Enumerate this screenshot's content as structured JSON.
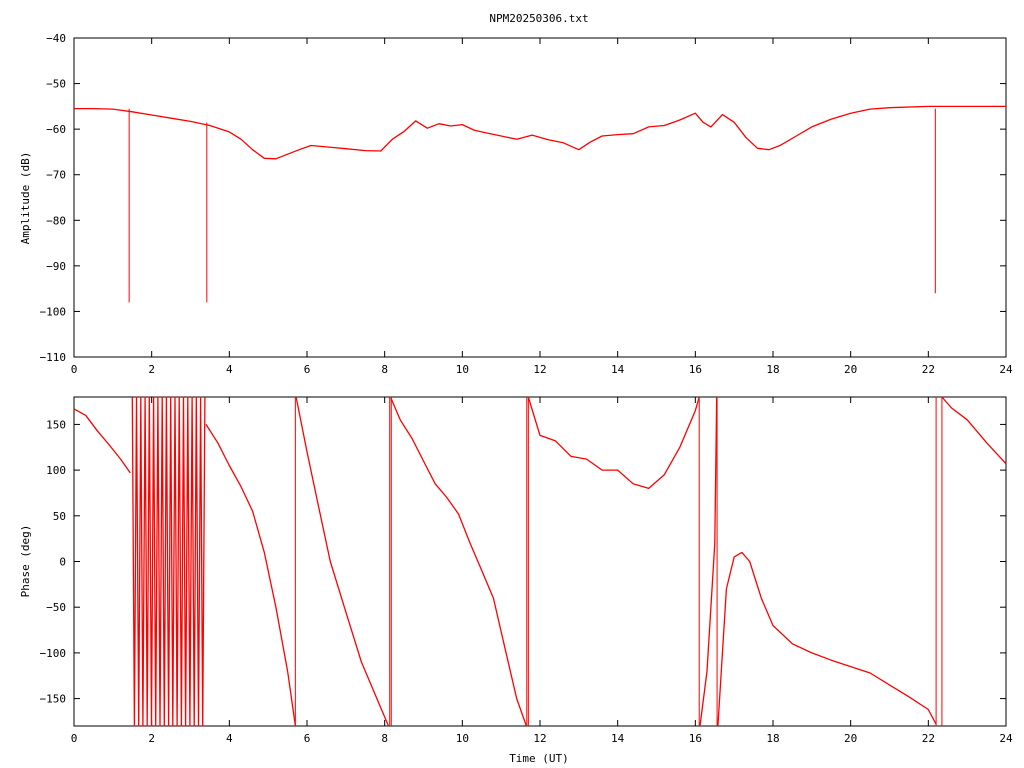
{
  "chart_data": [
    {
      "type": "line",
      "title": "NPM20250306.txt",
      "xlabel": "",
      "ylabel": "Amplitude (dB)",
      "xlim": [
        0,
        24
      ],
      "ylim": [
        -110,
        -40
      ],
      "xticks": [
        0,
        2,
        4,
        6,
        8,
        10,
        12,
        14,
        16,
        18,
        20,
        22,
        24
      ],
      "yticks": [
        -110,
        -100,
        -90,
        -80,
        -70,
        -60,
        -50,
        -40
      ],
      "color": "#ff0000",
      "grid": false,
      "series": [
        {
          "x": [
            0,
            0.5,
            1.0,
            1.5,
            2.0,
            2.5,
            3.0,
            3.5,
            4.0,
            4.3,
            4.6,
            4.9,
            5.2,
            5.5,
            5.8,
            6.1,
            6.5,
            7.0,
            7.5,
            7.9,
            8.2,
            8.5,
            8.8,
            9.1,
            9.4,
            9.7,
            10.0,
            10.3,
            10.6,
            11.0,
            11.4,
            11.8,
            12.2,
            12.6,
            13.0,
            13.3,
            13.6,
            14.0,
            14.4,
            14.8,
            15.2,
            15.6,
            16.0,
            16.2,
            16.4,
            16.7,
            17.0,
            17.3,
            17.6,
            17.9,
            18.2,
            18.6,
            19.0,
            19.5,
            20.0,
            20.5,
            21.0,
            22.0,
            23.0,
            24.0
          ],
          "y": [
            -55.5,
            -55.5,
            -55.6,
            -56.2,
            -56.9,
            -57.6,
            -58.3,
            -59.2,
            -60.6,
            -62.2,
            -64.5,
            -66.4,
            -66.5,
            -65.5,
            -64.5,
            -63.6,
            -63.9,
            -64.3,
            -64.7,
            -64.8,
            -62.2,
            -60.5,
            -58.2,
            -59.8,
            -58.8,
            -59.3,
            -59.0,
            -60.2,
            -60.8,
            -61.5,
            -62.2,
            -61.3,
            -62.3,
            -63.0,
            -64.5,
            -62.8,
            -61.5,
            -61.2,
            -61.0,
            -59.5,
            -59.2,
            -58.0,
            -56.5,
            -58.5,
            -59.5,
            -56.8,
            -58.5,
            -61.8,
            -64.2,
            -64.5,
            -63.5,
            -61.5,
            -59.5,
            -57.8,
            -56.5,
            -55.6,
            -55.3,
            -55.0,
            -55.0,
            -55.0
          ]
        }
      ],
      "spikes": [
        {
          "x": 1.42,
          "y": -98
        },
        {
          "x": 3.42,
          "y": -98
        },
        {
          "x": 22.18,
          "y": -96
        }
      ]
    },
    {
      "type": "line",
      "title": "",
      "xlabel": "Time (UT)",
      "ylabel": "Phase (deg)",
      "xlim": [
        0,
        24
      ],
      "ylim": [
        -180,
        180
      ],
      "xticks": [
        0,
        2,
        4,
        6,
        8,
        10,
        12,
        14,
        16,
        18,
        20,
        22,
        24
      ],
      "yticks": [
        -150,
        -100,
        -50,
        0,
        50,
        100,
        150
      ],
      "color": "#ff0000",
      "grid": false,
      "segments": [
        {
          "x": [
            0,
            0.3,
            0.6,
            0.9,
            1.2,
            1.45
          ],
          "y": [
            167,
            160,
            143,
            128,
            112,
            97
          ]
        },
        {
          "x": [
            3.4,
            3.7,
            4.0,
            4.3,
            4.6,
            4.9,
            5.2,
            5.5,
            5.7
          ],
          "y": [
            150,
            130,
            105,
            82,
            55,
            10,
            -50,
            -120,
            -180
          ]
        },
        {
          "x": [
            5.72,
            6.0,
            6.3,
            6.6,
            7.0,
            7.4,
            7.8,
            8.1
          ],
          "y": [
            180,
            120,
            60,
            0,
            -55,
            -110,
            -150,
            -180
          ]
        },
        {
          "x": [
            8.15,
            8.4,
            8.7,
            9.0,
            9.3,
            9.6,
            9.9,
            10.2,
            10.5,
            10.8,
            11.1,
            11.4,
            11.65
          ],
          "y": [
            180,
            155,
            135,
            110,
            85,
            70,
            52,
            20,
            -10,
            -40,
            -95,
            -150,
            -180
          ]
        },
        {
          "x": [
            11.7,
            12.0,
            12.4,
            12.8,
            13.2,
            13.6,
            14.0,
            14.4,
            14.8,
            15.2,
            15.6,
            16.0,
            16.1
          ],
          "y": [
            180,
            138,
            132,
            115,
            112,
            100,
            100,
            85,
            80,
            95,
            125,
            165,
            180
          ]
        },
        {
          "x": [
            16.12,
            16.3,
            16.5,
            16.55
          ],
          "y": [
            -180,
            -120,
            20,
            180
          ]
        },
        {
          "x": [
            16.58,
            16.8,
            17.0,
            17.2,
            17.4,
            17.7,
            18.0,
            18.5,
            19.0,
            19.5,
            20.0,
            20.5,
            21.0,
            21.5,
            22.0,
            22.2
          ],
          "y": [
            -180,
            -30,
            5,
            10,
            0,
            -40,
            -70,
            -90,
            -100,
            -108,
            -115,
            -122,
            -135,
            -148,
            -162,
            -178
          ]
        },
        {
          "x": [
            22.35,
            22.6,
            23.0,
            23.5,
            24.0
          ],
          "y": [
            180,
            168,
            155,
            130,
            107
          ]
        }
      ],
      "noise_band": {
        "x0": 1.5,
        "x1": 3.38,
        "y": [
          -180,
          180
        ]
      },
      "verticals": [
        5.7,
        8.13,
        8.17,
        11.66,
        11.7,
        16.1,
        16.56,
        22.2,
        22.35
      ]
    }
  ]
}
